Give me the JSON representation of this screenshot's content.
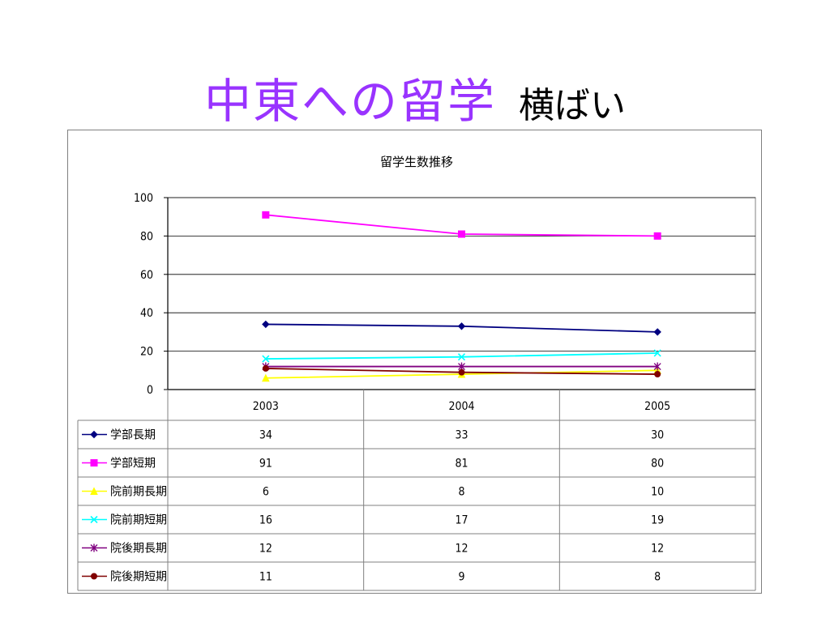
{
  "slide": {
    "title_main": "中東への留学",
    "title_sub": "横ばい"
  },
  "chart_data": {
    "type": "line",
    "title": "留学生数推移",
    "categories": [
      "2003",
      "2004",
      "2005"
    ],
    "ylim": [
      0,
      100
    ],
    "yticks": [
      "0",
      "20",
      "40",
      "60",
      "80",
      "100"
    ],
    "grid": true,
    "legend": "data-table",
    "series": [
      {
        "name": "学部長期",
        "values": [
          34,
          33,
          30
        ],
        "color": "#000080",
        "marker": "diamond"
      },
      {
        "name": "学部短期",
        "values": [
          91,
          81,
          80
        ],
        "color": "#ff00ff",
        "marker": "square"
      },
      {
        "name": "院前期長期",
        "values": [
          6,
          8,
          10
        ],
        "color": "#ffff00",
        "marker": "triangle"
      },
      {
        "name": "院前期短期",
        "values": [
          16,
          17,
          19
        ],
        "color": "#00ffff",
        "marker": "x"
      },
      {
        "name": "院後期長期",
        "values": [
          12,
          12,
          12
        ],
        "color": "#800080",
        "marker": "star"
      },
      {
        "name": "院後期短期",
        "values": [
          11,
          9,
          8
        ],
        "color": "#800000",
        "marker": "circle"
      }
    ]
  }
}
